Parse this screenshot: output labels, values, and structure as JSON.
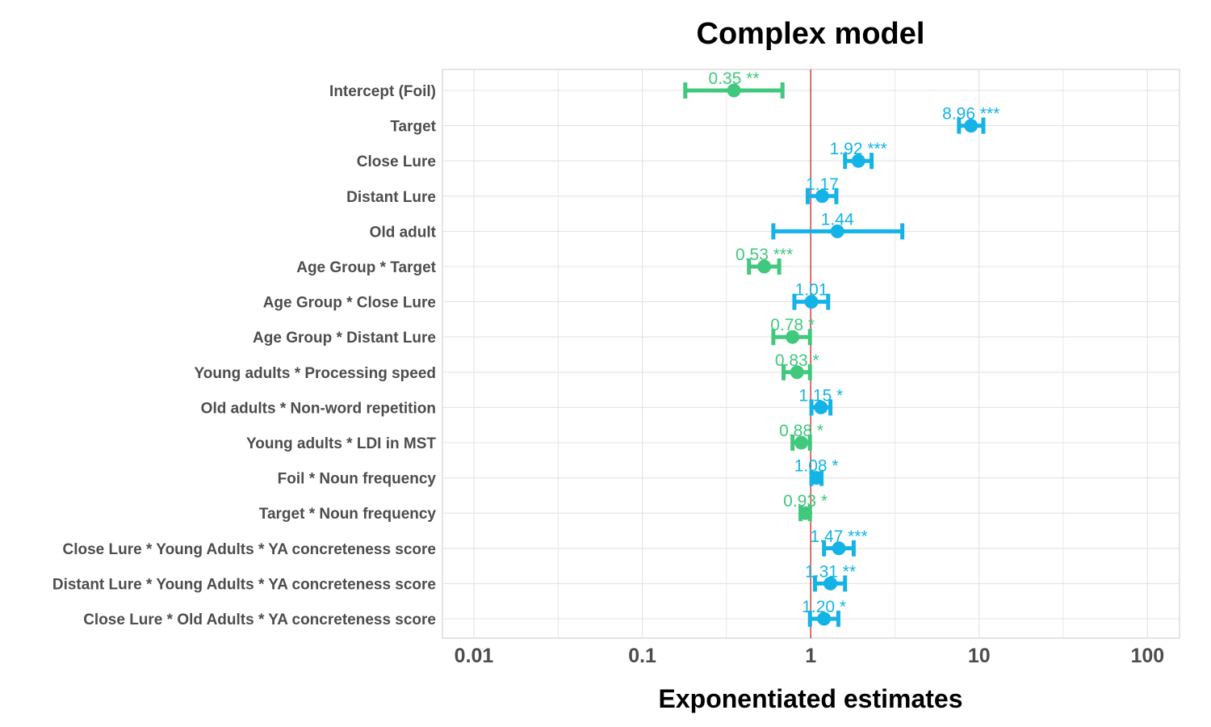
{
  "chart_data": {
    "type": "scatter",
    "title": "Complex model",
    "xlabel": "Exponentiated estimates",
    "ylabel": "",
    "x_scale": "log10",
    "xlim": [
      0.0065,
      155
    ],
    "x_ticks": [
      0.01,
      0.1,
      1,
      10,
      100
    ],
    "x_tick_labels": [
      "0.01",
      "0.1",
      "1",
      "10",
      "100"
    ],
    "reference_line": 1,
    "grid": true,
    "colors": {
      "positive": "#14b3e6",
      "negative": "#40c87d",
      "reference": "#cc1111",
      "grid": "#e3e3e3",
      "panel_border": "#c9c9c9"
    },
    "terms": [
      {
        "term": "Intercept (Foil)",
        "estimate": 0.35,
        "ci_low": 0.18,
        "ci_high": 0.68,
        "label": "0.35 **",
        "direction": "negative"
      },
      {
        "term": "Target",
        "estimate": 8.96,
        "ci_low": 7.6,
        "ci_high": 10.6,
        "label": "8.96 ***",
        "direction": "positive"
      },
      {
        "term": "Close Lure",
        "estimate": 1.92,
        "ci_low": 1.6,
        "ci_high": 2.3,
        "label": "1.92 ***",
        "direction": "positive"
      },
      {
        "term": "Distant Lure",
        "estimate": 1.17,
        "ci_low": 0.96,
        "ci_high": 1.42,
        "label": "1.17",
        "direction": "positive"
      },
      {
        "term": "Old adult",
        "estimate": 1.44,
        "ci_low": 0.6,
        "ci_high": 3.5,
        "label": "1.44",
        "direction": "positive"
      },
      {
        "term": "Age Group * Target",
        "estimate": 0.53,
        "ci_low": 0.43,
        "ci_high": 0.65,
        "label": "0.53 ***",
        "direction": "negative"
      },
      {
        "term": "Age Group * Close Lure",
        "estimate": 1.01,
        "ci_low": 0.8,
        "ci_high": 1.27,
        "label": "1.01",
        "direction": "positive"
      },
      {
        "term": "Age Group * Distant Lure",
        "estimate": 0.78,
        "ci_low": 0.6,
        "ci_high": 0.99,
        "label": "0.78 *",
        "direction": "negative"
      },
      {
        "term": "Young adults * Processing speed",
        "estimate": 0.83,
        "ci_low": 0.69,
        "ci_high": 0.99,
        "label": "0.83 *",
        "direction": "negative"
      },
      {
        "term": "Old adults * Non-word repetition",
        "estimate": 1.15,
        "ci_low": 1.01,
        "ci_high": 1.31,
        "label": "1.15 *",
        "direction": "positive"
      },
      {
        "term": "Young adults * LDI in MST",
        "estimate": 0.88,
        "ci_low": 0.78,
        "ci_high": 0.99,
        "label": "0.88 *",
        "direction": "negative"
      },
      {
        "term": "Foil * Noun frequency",
        "estimate": 1.08,
        "ci_low": 1.01,
        "ci_high": 1.16,
        "label": "1.08 *",
        "direction": "positive"
      },
      {
        "term": "Target * Noun frequency",
        "estimate": 0.93,
        "ci_low": 0.87,
        "ci_high": 0.99,
        "label": "0.93 *",
        "direction": "negative"
      },
      {
        "term": "Close Lure * Young Adults * YA concreteness score",
        "estimate": 1.47,
        "ci_low": 1.2,
        "ci_high": 1.8,
        "label": "1.47 ***",
        "direction": "positive"
      },
      {
        "term": "Distant Lure * Young Adults * YA concreteness score",
        "estimate": 1.31,
        "ci_low": 1.06,
        "ci_high": 1.6,
        "label": "1.31 **",
        "direction": "positive"
      },
      {
        "term": "Close Lure * Old Adults * YA concreteness score",
        "estimate": 1.2,
        "ci_low": 0.99,
        "ci_high": 1.46,
        "label": "1.20 *",
        "direction": "positive"
      }
    ]
  }
}
